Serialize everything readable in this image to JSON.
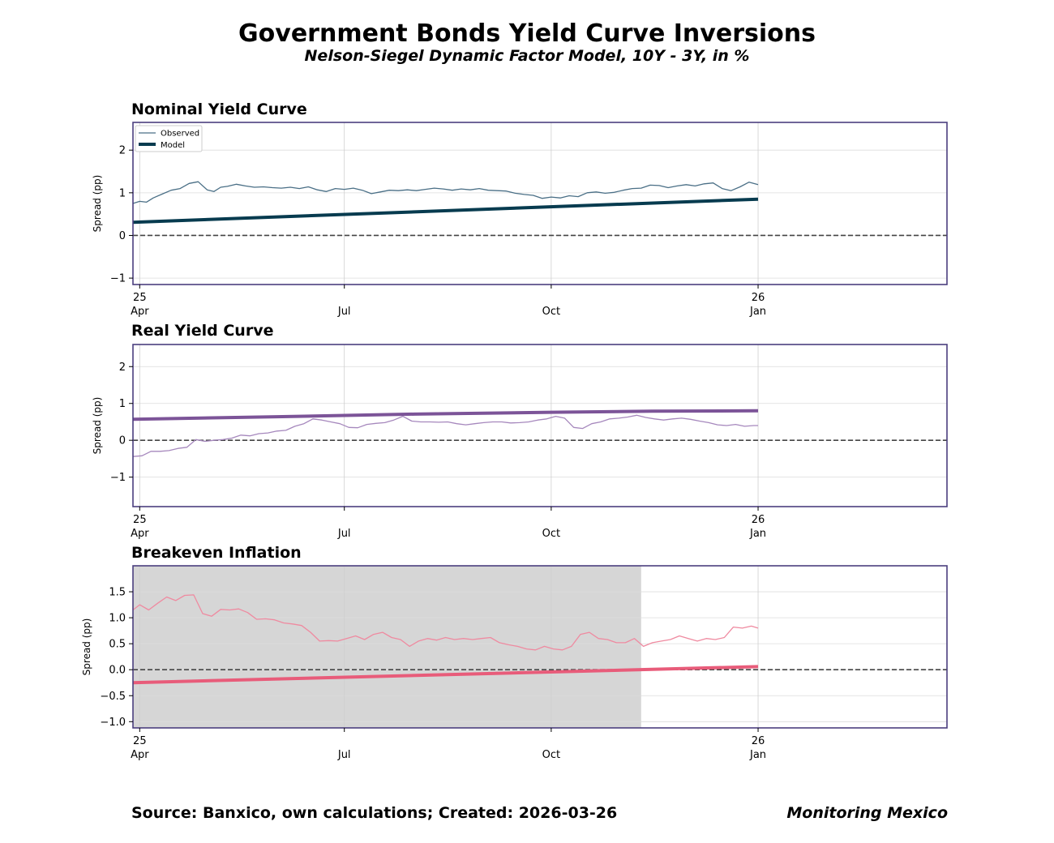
{
  "title": "Government Bonds Yield Curve Inversions",
  "subtitle": "Nelson-Siegel Dynamic Factor Model, 10Y - 3Y, in %",
  "footer": {
    "source": "Source: Banxico, own calculations; Created: 2026-03-26",
    "brand": "Monitoring Mexico"
  },
  "colors": {
    "frame": "#4b3f7e",
    "nominal_observed": "#4a6f86",
    "nominal_model": "#073b4f",
    "real_observed": "#a688bd",
    "real_model": "#7c5498",
    "breakeven_observed": "#ef8aa0",
    "breakeven_model": "#e85c7a",
    "shade": "#d6d6d6"
  },
  "chart_data": [
    {
      "type": "line",
      "title": "Nominal Yield Curve",
      "ylabel": "Spread (pp)",
      "xlim": [
        "2025-03-29",
        "2026-03-26"
      ],
      "ylim": [
        -1.15,
        2.65
      ],
      "yticks": [
        "2",
        "1",
        "0",
        "−1"
      ],
      "ytick_values": [
        2,
        1,
        0,
        -1
      ],
      "xticks": [
        {
          "date": "2025-04-01",
          "label1": "25",
          "label2": "Apr"
        },
        {
          "date": "2025-07-01",
          "label1": "",
          "label2": "Jul"
        },
        {
          "date": "2025-10-01",
          "label1": "",
          "label2": "Oct"
        },
        {
          "date": "2026-01-01",
          "label1": "26",
          "label2": "Jan"
        }
      ],
      "grid": true,
      "legend": {
        "position": "upper-left",
        "entries": [
          "Observed",
          "Model"
        ]
      },
      "reference_line": 0,
      "series": [
        {
          "name": "Observed",
          "x": [
            "2025-03-29",
            "2025-04-01",
            "2025-04-04",
            "2025-04-07",
            "2025-04-11",
            "2025-04-15",
            "2025-04-19",
            "2025-04-23",
            "2025-04-27",
            "2025-05-01",
            "2025-05-04",
            "2025-05-07",
            "2025-05-10",
            "2025-05-14",
            "2025-05-18",
            "2025-05-22",
            "2025-05-26",
            "2025-05-30",
            "2025-06-03",
            "2025-06-07",
            "2025-06-11",
            "2025-06-15",
            "2025-06-19",
            "2025-06-23",
            "2025-06-27",
            "2025-07-01",
            "2025-07-05",
            "2025-07-09",
            "2025-07-13",
            "2025-07-17",
            "2025-07-21",
            "2025-07-25",
            "2025-07-29",
            "2025-08-02",
            "2025-08-06",
            "2025-08-10",
            "2025-08-14",
            "2025-08-18",
            "2025-08-22",
            "2025-08-26",
            "2025-08-30",
            "2025-09-03",
            "2025-09-07",
            "2025-09-11",
            "2025-09-15",
            "2025-09-19",
            "2025-09-23",
            "2025-09-27",
            "2025-10-01",
            "2025-10-05",
            "2025-10-09",
            "2025-10-13",
            "2025-10-17",
            "2025-10-21",
            "2025-10-25",
            "2025-10-29",
            "2025-11-02",
            "2025-11-06",
            "2025-11-10",
            "2025-11-14",
            "2025-11-18",
            "2025-11-22",
            "2025-11-26",
            "2025-11-30",
            "2025-12-04",
            "2025-12-08",
            "2025-12-12",
            "2025-12-16",
            "2025-12-20",
            "2025-12-24",
            "2025-12-28",
            "2026-01-01"
          ],
          "values": [
            0.75,
            0.8,
            0.78,
            0.88,
            0.97,
            1.06,
            1.1,
            1.22,
            1.26,
            1.07,
            1.03,
            1.13,
            1.15,
            1.2,
            1.16,
            1.13,
            1.14,
            1.12,
            1.11,
            1.13,
            1.1,
            1.14,
            1.07,
            1.03,
            1.1,
            1.08,
            1.11,
            1.06,
            0.98,
            1.02,
            1.06,
            1.05,
            1.07,
            1.05,
            1.08,
            1.11,
            1.09,
            1.06,
            1.09,
            1.07,
            1.1,
            1.06,
            1.05,
            1.04,
            0.99,
            0.96,
            0.94,
            0.87,
            0.9,
            0.88,
            0.93,
            0.91,
            1.0,
            1.02,
            0.99,
            1.01,
            1.06,
            1.1,
            1.11,
            1.18,
            1.17,
            1.12,
            1.16,
            1.19,
            1.16,
            1.21,
            1.23,
            1.1,
            1.05,
            1.14,
            1.25,
            1.19
          ]
        },
        {
          "name": "Model",
          "x": [
            "2025-03-29",
            "2026-01-01"
          ],
          "values": [
            0.31,
            0.85
          ]
        }
      ]
    },
    {
      "type": "line",
      "title": "Real Yield Curve",
      "ylabel": "Spread (pp)",
      "xlim": [
        "2025-03-29",
        "2026-03-26"
      ],
      "ylim": [
        -1.8,
        2.6
      ],
      "yticks": [
        "2",
        "1",
        "0",
        "−1"
      ],
      "ytick_values": [
        2,
        1,
        0,
        -1
      ],
      "xticks": [
        {
          "date": "2025-04-01",
          "label1": "25",
          "label2": "Apr"
        },
        {
          "date": "2025-07-01",
          "label1": "",
          "label2": "Jul"
        },
        {
          "date": "2025-10-01",
          "label1": "",
          "label2": "Oct"
        },
        {
          "date": "2026-01-01",
          "label1": "26",
          "label2": "Jan"
        }
      ],
      "grid": true,
      "reference_line": 0,
      "series": [
        {
          "x": [
            "2025-03-29",
            "2025-04-02",
            "2025-04-06",
            "2025-04-10",
            "2025-04-14",
            "2025-04-18",
            "2025-04-22",
            "2025-04-26",
            "2025-04-30",
            "2025-05-04",
            "2025-05-08",
            "2025-05-12",
            "2025-05-16",
            "2025-05-20",
            "2025-05-24",
            "2025-05-28",
            "2025-06-01",
            "2025-06-05",
            "2025-06-09",
            "2025-06-13",
            "2025-06-17",
            "2025-06-21",
            "2025-06-25",
            "2025-06-29",
            "2025-07-03",
            "2025-07-07",
            "2025-07-11",
            "2025-07-15",
            "2025-07-19",
            "2025-07-23",
            "2025-07-27",
            "2025-07-31",
            "2025-08-04",
            "2025-08-08",
            "2025-08-12",
            "2025-08-16",
            "2025-08-20",
            "2025-08-24",
            "2025-08-28",
            "2025-09-01",
            "2025-09-05",
            "2025-09-09",
            "2025-09-13",
            "2025-09-17",
            "2025-09-21",
            "2025-09-25",
            "2025-09-29",
            "2025-10-03",
            "2025-10-07",
            "2025-10-11",
            "2025-10-15",
            "2025-10-19",
            "2025-10-23",
            "2025-10-27",
            "2025-10-31",
            "2025-11-04",
            "2025-11-08",
            "2025-11-12",
            "2025-11-16",
            "2025-11-20",
            "2025-11-24",
            "2025-11-28",
            "2025-12-02",
            "2025-12-06",
            "2025-12-10",
            "2025-12-14",
            "2025-12-18",
            "2025-12-22",
            "2025-12-26",
            "2025-12-30",
            "2026-01-01"
          ],
          "values": [
            -0.44,
            -0.42,
            -0.3,
            -0.3,
            -0.28,
            -0.22,
            -0.19,
            0.02,
            -0.03,
            0.0,
            0.02,
            0.06,
            0.14,
            0.12,
            0.18,
            0.2,
            0.25,
            0.27,
            0.38,
            0.45,
            0.58,
            0.55,
            0.5,
            0.45,
            0.35,
            0.34,
            0.43,
            0.46,
            0.48,
            0.55,
            0.65,
            0.52,
            0.5,
            0.5,
            0.49,
            0.5,
            0.45,
            0.42,
            0.45,
            0.48,
            0.5,
            0.5,
            0.47,
            0.48,
            0.5,
            0.55,
            0.58,
            0.65,
            0.6,
            0.35,
            0.32,
            0.45,
            0.5,
            0.58,
            0.6,
            0.63,
            0.68,
            0.62,
            0.58,
            0.55,
            0.58,
            0.6,
            0.57,
            0.52,
            0.48,
            0.42,
            0.4,
            0.43,
            0.38,
            0.4,
            0.4
          ]
        },
        {
          "x": [
            "2025-03-29",
            "2025-06-01",
            "2025-08-01",
            "2025-10-01",
            "2025-11-15",
            "2026-01-01"
          ],
          "values": [
            0.57,
            0.64,
            0.71,
            0.76,
            0.79,
            0.8
          ]
        }
      ]
    },
    {
      "type": "line",
      "title": "Breakeven Inflation",
      "ylabel": "Spread (pp)",
      "xlim": [
        "2025-03-29",
        "2026-03-26"
      ],
      "ylim": [
        -1.12,
        2.0
      ],
      "yticks": [
        "1.5",
        "1.0",
        "0.5",
        "0.0",
        "−0.5",
        "−1.0"
      ],
      "ytick_values": [
        1.5,
        1.0,
        0.5,
        0.0,
        -0.5,
        -1.0
      ],
      "xticks": [
        {
          "date": "2025-04-01",
          "label1": "25",
          "label2": "Apr"
        },
        {
          "date": "2025-07-01",
          "label1": "",
          "label2": "Jul"
        },
        {
          "date": "2025-10-01",
          "label1": "",
          "label2": "Oct"
        },
        {
          "date": "2026-01-01",
          "label1": "26",
          "label2": "Jan"
        }
      ],
      "grid": true,
      "reference_line": 0,
      "shaded_span": {
        "start": "2025-03-29",
        "end": "2025-11-10"
      },
      "series": [
        {
          "x": [
            "2025-03-29",
            "2025-04-01",
            "2025-04-05",
            "2025-04-09",
            "2025-04-13",
            "2025-04-17",
            "2025-04-21",
            "2025-04-25",
            "2025-04-29",
            "2025-05-03",
            "2025-05-07",
            "2025-05-11",
            "2025-05-15",
            "2025-05-19",
            "2025-05-23",
            "2025-05-27",
            "2025-05-31",
            "2025-06-04",
            "2025-06-08",
            "2025-06-12",
            "2025-06-16",
            "2025-06-20",
            "2025-06-24",
            "2025-06-28",
            "2025-07-02",
            "2025-07-06",
            "2025-07-10",
            "2025-07-14",
            "2025-07-18",
            "2025-07-22",
            "2025-07-26",
            "2025-07-30",
            "2025-08-03",
            "2025-08-07",
            "2025-08-11",
            "2025-08-15",
            "2025-08-19",
            "2025-08-23",
            "2025-08-27",
            "2025-08-31",
            "2025-09-04",
            "2025-09-08",
            "2025-09-12",
            "2025-09-16",
            "2025-09-20",
            "2025-09-24",
            "2025-09-28",
            "2025-10-02",
            "2025-10-06",
            "2025-10-10",
            "2025-10-14",
            "2025-10-18",
            "2025-10-22",
            "2025-10-26",
            "2025-10-30",
            "2025-11-03",
            "2025-11-07",
            "2025-11-11",
            "2025-11-15",
            "2025-11-19",
            "2025-11-23",
            "2025-11-27",
            "2025-12-01",
            "2025-12-05",
            "2025-12-09",
            "2025-12-13",
            "2025-12-17",
            "2025-12-21",
            "2025-12-25",
            "2025-12-29",
            "2026-01-01"
          ],
          "values": [
            1.15,
            1.25,
            1.15,
            1.28,
            1.4,
            1.33,
            1.43,
            1.44,
            1.08,
            1.03,
            1.16,
            1.15,
            1.17,
            1.1,
            0.97,
            0.98,
            0.96,
            0.9,
            0.88,
            0.85,
            0.72,
            0.55,
            0.56,
            0.55,
            0.6,
            0.65,
            0.58,
            0.68,
            0.72,
            0.62,
            0.58,
            0.45,
            0.55,
            0.6,
            0.57,
            0.62,
            0.58,
            0.6,
            0.58,
            0.6,
            0.62,
            0.52,
            0.48,
            0.45,
            0.4,
            0.38,
            0.45,
            0.4,
            0.38,
            0.45,
            0.68,
            0.72,
            0.6,
            0.58,
            0.52,
            0.52,
            0.6,
            0.45,
            0.52,
            0.55,
            0.58,
            0.65,
            0.6,
            0.55,
            0.6,
            0.58,
            0.62,
            0.82,
            0.8,
            0.84,
            0.8
          ]
        },
        {
          "x": [
            "2025-03-29",
            "2026-01-01"
          ],
          "values": [
            -0.25,
            0.06
          ]
        }
      ]
    }
  ]
}
